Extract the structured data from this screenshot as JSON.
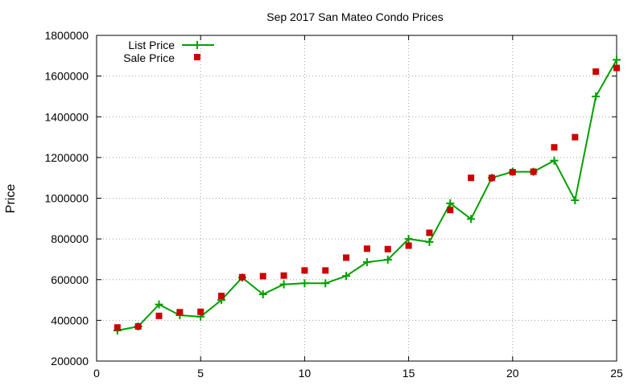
{
  "chart_data": {
    "type": "line",
    "title": "Sep 2017 San Mateo Condo Prices",
    "xlabel": "",
    "ylabel": "Price",
    "xlim": [
      0,
      25
    ],
    "ylim": [
      200000,
      1800000
    ],
    "xticks": [
      0,
      5,
      10,
      15,
      20,
      25
    ],
    "yticks": [
      200000,
      400000,
      600000,
      800000,
      1000000,
      1200000,
      1400000,
      1600000,
      1800000
    ],
    "grid": true,
    "legend_position": "top-left",
    "x": [
      1,
      2,
      3,
      4,
      5,
      6,
      7,
      8,
      9,
      10,
      11,
      12,
      13,
      14,
      15,
      16,
      17,
      18,
      19,
      20,
      21,
      22,
      23,
      24,
      25
    ],
    "series": [
      {
        "name": "List Price",
        "style": "line-with-plus-markers",
        "color": "#00a000",
        "values": [
          350000,
          370000,
          478000,
          425000,
          418000,
          500000,
          610000,
          528000,
          577000,
          582000,
          582000,
          618000,
          686000,
          698000,
          800000,
          785000,
          975000,
          898000,
          1100000,
          1130000,
          1130000,
          1185000,
          990000,
          1500000,
          1680000
        ]
      },
      {
        "name": "Sale Price",
        "style": "square-markers",
        "color": "#cc0000",
        "values": [
          365000,
          370000,
          422000,
          440000,
          442000,
          520000,
          612000,
          617000,
          620000,
          645000,
          645000,
          708000,
          752000,
          750000,
          767000,
          830000,
          942000,
          1100000,
          1100000,
          1128000,
          1130000,
          1250000,
          1300000,
          1622000,
          1640000
        ]
      }
    ]
  }
}
